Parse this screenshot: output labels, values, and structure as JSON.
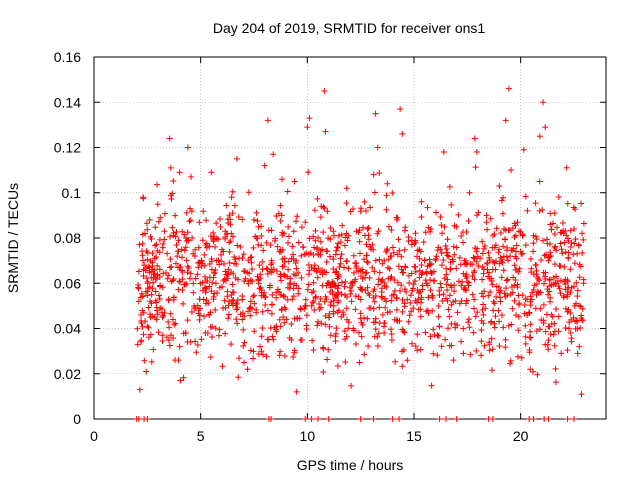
{
  "chart_data": {
    "type": "scatter",
    "title": "Day 204 of 2019, SRMTID for receiver ons1",
    "xlabel": "GPS time / hours",
    "ylabel": "SRMTID / TECUs",
    "xlim": [
      0,
      24
    ],
    "ylim": [
      0,
      0.16
    ],
    "xticks": [
      0,
      5,
      10,
      15,
      20
    ],
    "xtick_labels": [
      "0",
      "5",
      "10",
      "15",
      "20"
    ],
    "yticks": [
      0,
      0.02,
      0.04,
      0.06,
      0.08,
      0.1,
      0.12,
      0.14,
      0.16
    ],
    "ytick_labels": [
      "0",
      "0.02",
      "0.04",
      "0.06",
      "0.08",
      "0.1",
      "0.12",
      "0.14",
      "0.16"
    ],
    "grid": true,
    "marker": "+",
    "color": "#ff0000",
    "data_range_hours": [
      2.0,
      23.0
    ],
    "series": [
      {
        "name": "ons1",
        "points": [
          [
            2.05,
            0.033
          ],
          [
            2.1,
            0.052
          ],
          [
            2.15,
            0.013
          ],
          [
            2.2,
            0.046
          ],
          [
            2.3,
            0.098
          ],
          [
            2.35,
            0.068
          ],
          [
            2.45,
            0.021
          ],
          [
            2.5,
            0.041
          ],
          [
            2.6,
            0.067
          ],
          [
            2.7,
            0.055
          ],
          [
            2.85,
            0.071
          ],
          [
            2.95,
            0.048
          ],
          [
            3.1,
            0.059
          ],
          [
            3.2,
            0.037
          ],
          [
            3.3,
            0.083
          ],
          [
            3.45,
            0.062
          ],
          [
            3.55,
            0.124
          ],
          [
            3.6,
            0.111
          ],
          [
            3.7,
            0.044
          ],
          [
            3.8,
            0.026
          ],
          [
            3.9,
            0.072
          ],
          [
            4.05,
            0.017
          ],
          [
            4.15,
            0.057
          ],
          [
            4.3,
            0.038
          ],
          [
            4.4,
            0.12
          ],
          [
            4.5,
            0.093
          ],
          [
            4.55,
            0.107
          ],
          [
            4.7,
            0.049
          ],
          [
            4.85,
            0.064
          ],
          [
            4.95,
            0.053
          ],
          [
            5.1,
            0.079
          ],
          [
            5.25,
            0.061
          ],
          [
            5.4,
            0.046
          ],
          [
            5.5,
            0.109
          ],
          [
            5.6,
            0.054
          ],
          [
            5.75,
            0.07
          ],
          [
            5.9,
            0.058
          ],
          [
            6.05,
            0.049
          ],
          [
            6.15,
            0.083
          ],
          [
            6.3,
            0.066
          ],
          [
            6.45,
            0.098
          ],
          [
            6.55,
            0.056
          ],
          [
            6.7,
            0.115
          ],
          [
            6.8,
            0.071
          ],
          [
            6.95,
            0.044
          ],
          [
            7.1,
            0.062
          ],
          [
            7.2,
            0.022
          ],
          [
            7.35,
            0.052
          ],
          [
            7.5,
            0.088
          ],
          [
            7.6,
            0.047
          ],
          [
            7.75,
            0.068
          ],
          [
            7.85,
            0.03
          ],
          [
            8.0,
            0.112
          ],
          [
            8.15,
            0.132
          ],
          [
            8.25,
            0.059
          ],
          [
            8.4,
            0.117
          ],
          [
            8.55,
            0.041
          ],
          [
            8.7,
            0.074
          ],
          [
            8.8,
            0.09
          ],
          [
            8.95,
            0.054
          ],
          [
            9.1,
            0.066
          ],
          [
            9.25,
            0.042
          ],
          [
            9.4,
            0.105
          ],
          [
            9.5,
            0.012
          ],
          [
            9.6,
            0.078
          ],
          [
            9.75,
            0.035
          ],
          [
            9.9,
            0.087
          ],
          [
            10.0,
            0.129
          ],
          [
            10.1,
            0.133
          ],
          [
            10.2,
            0.05
          ],
          [
            10.35,
            0.068
          ],
          [
            10.5,
            0.043
          ],
          [
            10.65,
            0.094
          ],
          [
            10.8,
            0.145
          ],
          [
            10.85,
            0.127
          ],
          [
            10.95,
            0.06
          ],
          [
            11.1,
            0.037
          ],
          [
            11.25,
            0.081
          ],
          [
            11.4,
            0.055
          ],
          [
            11.55,
            0.071
          ],
          [
            11.7,
            0.046
          ],
          [
            11.85,
            0.102
          ],
          [
            12.0,
            0.058
          ],
          [
            12.15,
            0.04
          ],
          [
            12.3,
            0.083
          ],
          [
            12.45,
            0.025
          ],
          [
            12.6,
            0.065
          ],
          [
            12.75,
            0.092
          ],
          [
            12.9,
            0.049
          ],
          [
            13.05,
            0.077
          ],
          [
            13.2,
            0.135
          ],
          [
            13.3,
            0.12
          ],
          [
            13.45,
            0.061
          ],
          [
            13.6,
            0.038
          ],
          [
            13.75,
            0.104
          ],
          [
            13.9,
            0.072
          ],
          [
            14.05,
            0.055
          ],
          [
            14.2,
            0.088
          ],
          [
            14.35,
            0.137
          ],
          [
            14.45,
            0.126
          ],
          [
            14.6,
            0.067
          ],
          [
            14.75,
            0.043
          ],
          [
            14.9,
            0.079
          ],
          [
            15.05,
            0.061
          ],
          [
            15.2,
            0.053
          ],
          [
            15.35,
            0.096
          ],
          [
            15.5,
            0.07
          ],
          [
            15.65,
            0.048
          ],
          [
            15.8,
            0.084
          ],
          [
            15.95,
            0.061
          ],
          [
            16.1,
            0.037
          ],
          [
            16.25,
            0.075
          ],
          [
            16.4,
            0.118
          ],
          [
            16.55,
            0.057
          ],
          [
            16.7,
            0.066
          ],
          [
            16.85,
            0.026
          ],
          [
            17.0,
            0.085
          ],
          [
            17.15,
            0.051
          ],
          [
            17.3,
            0.078
          ],
          [
            17.45,
            0.064
          ],
          [
            17.6,
            0.1
          ],
          [
            17.75,
            0.055
          ],
          [
            17.85,
            0.124
          ],
          [
            17.95,
            0.118
          ],
          [
            18.1,
            0.071
          ],
          [
            18.25,
            0.046
          ],
          [
            18.4,
            0.09
          ],
          [
            18.55,
            0.062
          ],
          [
            18.7,
            0.081
          ],
          [
            18.85,
            0.054
          ],
          [
            19.0,
            0.103
          ],
          [
            19.15,
            0.069
          ],
          [
            19.3,
            0.132
          ],
          [
            19.45,
            0.146
          ],
          [
            19.55,
            0.11
          ],
          [
            19.7,
            0.059
          ],
          [
            19.85,
            0.087
          ],
          [
            20.0,
            0.074
          ],
          [
            20.15,
            0.119
          ],
          [
            20.3,
            0.053
          ],
          [
            20.45,
            0.022
          ],
          [
            20.6,
            0.081
          ],
          [
            20.75,
            0.064
          ],
          [
            20.9,
            0.125
          ],
          [
            21.05,
            0.14
          ],
          [
            21.15,
            0.129
          ],
          [
            21.3,
            0.07
          ],
          [
            21.45,
            0.046
          ],
          [
            21.6,
            0.091
          ],
          [
            21.75,
            0.061
          ],
          [
            21.9,
            0.029
          ],
          [
            22.05,
            0.078
          ],
          [
            22.2,
            0.055
          ],
          [
            22.35,
            0.038
          ],
          [
            22.5,
            0.084
          ],
          [
            22.65,
            0.043
          ],
          [
            22.75,
            0.032
          ],
          [
            22.85,
            0.011
          ],
          [
            22.95,
            0.06
          ]
        ]
      }
    ],
    "zero_markers_hours": [
      2.0,
      2.1,
      2.35,
      2.5,
      8.2,
      8.3,
      9.9,
      10.2,
      10.5,
      11.0,
      12.5,
      13.1,
      14.0,
      14.3,
      16.2,
      16.5,
      17.0,
      18.5,
      18.7,
      20.4,
      20.6,
      21.1,
      21.3,
      22.2,
      22.5
    ]
  }
}
